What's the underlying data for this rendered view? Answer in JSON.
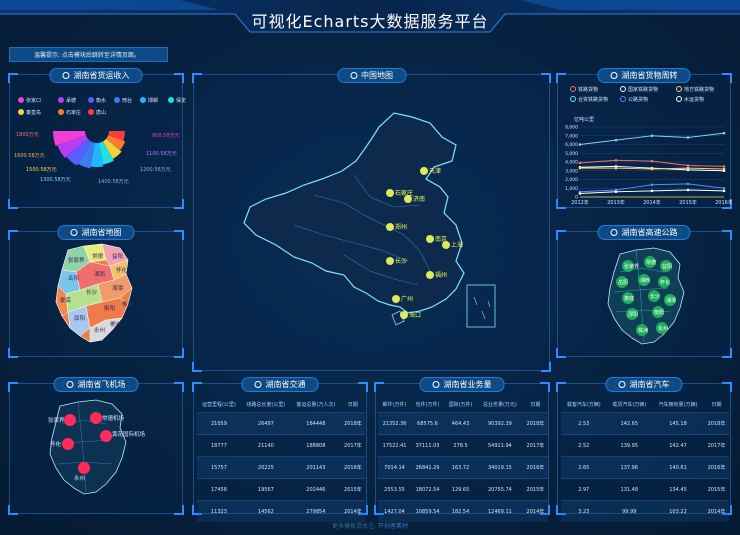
{
  "header": {
    "title": "可视化Echarts大数据服务平台"
  },
  "notice": {
    "text": "温馨提示: 点击模块后跳转至详情页面。"
  },
  "panels": {
    "freight_income": "湖南省货运收入",
    "china_map": "中国地图",
    "goods_turnover": "湖南省货物周转",
    "hunan_map": "湖南省地图",
    "highway": "湖南省高速公路",
    "airport": "湖南省飞机场",
    "traffic": "湖南省交通",
    "business": "湖南省业务量",
    "car": "湖南省汽车"
  },
  "freight_legend": [
    {
      "name": "张家口",
      "color": "#f23dd6"
    },
    {
      "name": "承德",
      "color": "#b63df2"
    },
    {
      "name": "衡水",
      "color": "#5b5bff"
    },
    {
      "name": "邢台",
      "color": "#3d7bf2"
    },
    {
      "name": "邯郸",
      "color": "#1fb8ff"
    },
    {
      "name": "保定",
      "color": "#23e0e0"
    },
    {
      "name": "秦皇岛",
      "color": "#f2d23d"
    },
    {
      "name": "石家庄",
      "color": "#ff7a2f"
    },
    {
      "name": "唐山",
      "color": "#ff3b3b"
    }
  ],
  "freight_labels": [
    "1800万元",
    "1600.58万元",
    "1500.58万元",
    "1300.58万元",
    "1400.58万元",
    "1200.58万元",
    "1100.58万元",
    "900.58万元"
  ],
  "chart_data": {
    "type": "line",
    "x": [
      "2012年",
      "2013年",
      "2014年",
      "2015年",
      "2016年"
    ],
    "ylabel": "亿吨公里",
    "ylim": [
      0,
      8000
    ],
    "yticks": [
      "0",
      "1,000",
      "2,000",
      "3,000",
      "4,000",
      "5,000",
      "6,000",
      "7,000",
      "8,000"
    ],
    "series": [
      {
        "name": "铁路货物",
        "color": "#ff6b6b",
        "values": [
          3900,
          4200,
          4100,
          3600,
          3500
        ]
      },
      {
        "name": "国家铁路货物",
        "color": "#ffffff",
        "values": [
          3400,
          3500,
          3300,
          3100,
          3000
        ]
      },
      {
        "name": "地方铁路货物",
        "color": "#ffd166",
        "values": [
          3300,
          3300,
          3200,
          3300,
          3200
        ]
      },
      {
        "name": "合资铁路货物",
        "color": "#7fd4ff",
        "values": [
          6000,
          6500,
          7000,
          6800,
          7300
        ]
      },
      {
        "name": "公路货物",
        "color": "#5a8cff",
        "values": [
          600,
          800,
          1400,
          1500,
          1000
        ]
      },
      {
        "name": "水运货物",
        "color": "#ffffff",
        "values": [
          400,
          600,
          700,
          800,
          700
        ]
      }
    ]
  },
  "china_cities": [
    "天津",
    "石家庄",
    "济南",
    "郑州",
    "南京",
    "上海",
    "长沙",
    "福州",
    "广州",
    "海口"
  ],
  "hunan_cities": [
    "张家界",
    "常德",
    "益阳",
    "岳阳",
    "湘西",
    "怀化",
    "娄底",
    "长沙",
    "湘潭",
    "邵阳",
    "衡阳",
    "株洲",
    "永州",
    "郴州"
  ],
  "airport_labels": [
    "张家界",
    "常德机场",
    "黄花国际机场",
    "怀化",
    "永州"
  ],
  "traffic": {
    "headers": [
      "运营里程(公里)",
      "线路总长度(公里)",
      "客运总量(万人次)",
      "日期"
    ],
    "rows": [
      [
        "21059",
        "26497",
        "184448",
        "2018年"
      ],
      [
        "18777",
        "21140",
        "188808",
        "2017年"
      ],
      [
        "15757",
        "20225",
        "201143",
        "2016年"
      ],
      [
        "17458",
        "19567",
        "202446",
        "2015年"
      ],
      [
        "11323",
        "14562",
        "279854",
        "2014年"
      ]
    ]
  },
  "business": {
    "headers": [
      "邮件(万件)",
      "包件(万件)",
      "国际(万件)",
      "总业务量(万元)",
      "日期"
    ],
    "rows": [
      [
        "21352.36",
        "68575.6",
        "464.43",
        "90392.39",
        "2018年"
      ],
      [
        "17522.41",
        "37111.03",
        "278.5",
        "54911.94",
        "2017年"
      ],
      [
        "7014.14",
        "26841.29",
        "163.72",
        "34019.15",
        "2016年"
      ],
      [
        "2553.55",
        "18072.54",
        "129.65",
        "20755.74",
        "2015年"
      ],
      [
        "1427.04",
        "10859.54",
        "182.54",
        "12469.11",
        "2014年"
      ]
    ]
  },
  "car": {
    "headers": [
      "载客汽车(万辆)",
      "载货汽车(万辆)",
      "汽车拥有量(万辆)",
      "日期"
    ],
    "rows": [
      [
        "2.53",
        "142.65",
        "145.18",
        "2018年"
      ],
      [
        "2.52",
        "139.95",
        "142.47",
        "2017年"
      ],
      [
        "2.65",
        "137.96",
        "140.61",
        "2016年"
      ],
      [
        "2.97",
        "131.48",
        "134.45",
        "2015年"
      ],
      [
        "3.23",
        "99.99",
        "103.22",
        "2014年"
      ]
    ]
  },
  "footer": {
    "prefix": "更多模板请关注:",
    "link": "开创者素材"
  }
}
